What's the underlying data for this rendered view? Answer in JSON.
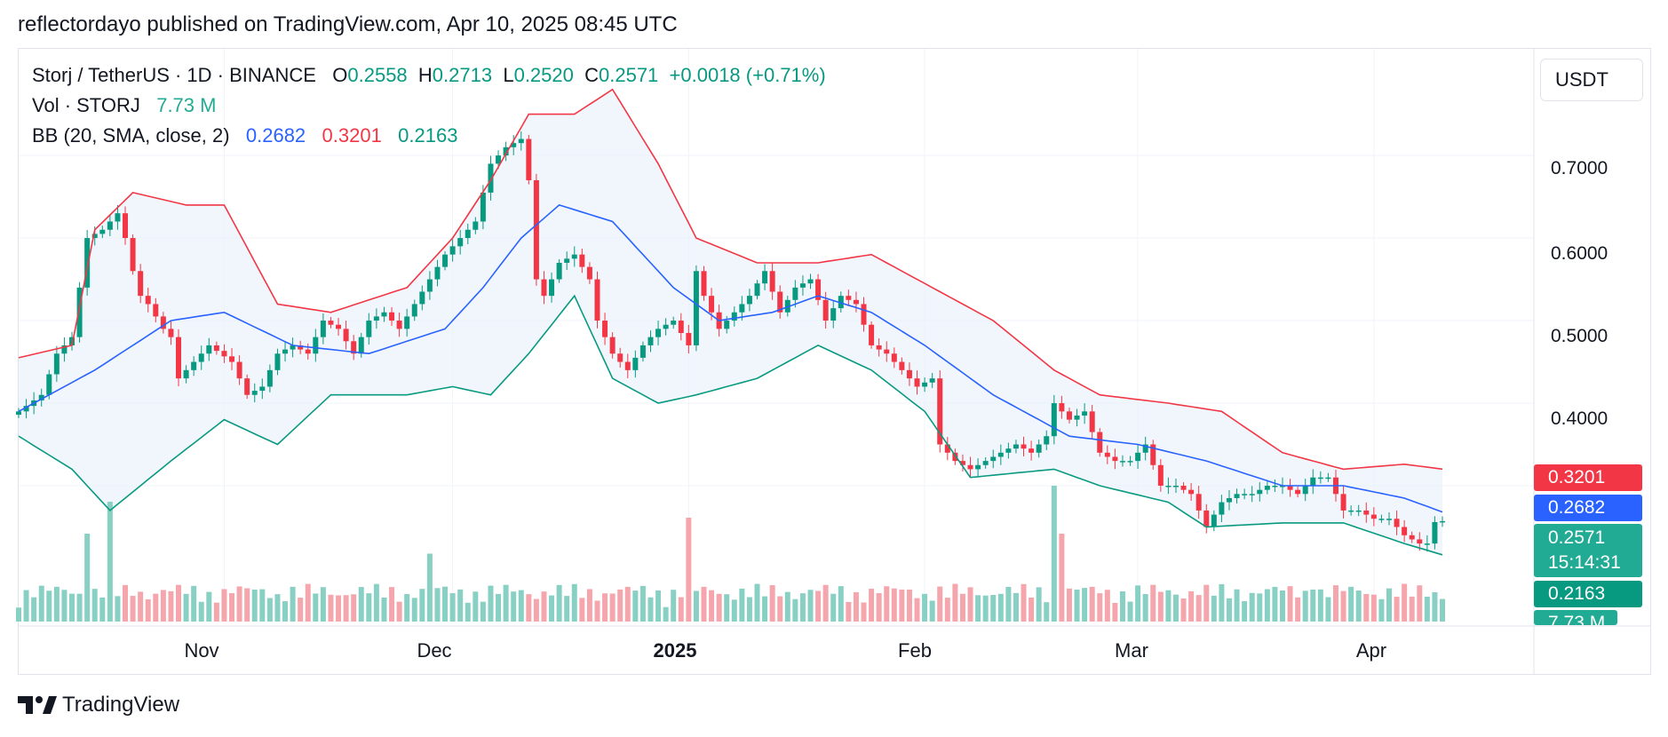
{
  "header": {
    "published": "reflectordayo published on TradingView.com, Apr 10, 2025 08:45 UTC"
  },
  "legend": {
    "symbol": "Storj / TetherUS · 1D · BINANCE",
    "o_label": "O",
    "o_value": "0.2558",
    "h_label": "H",
    "h_value": "0.2713",
    "l_label": "L",
    "l_value": "0.2520",
    "c_label": "C",
    "c_value": "0.2571",
    "change": "+0.0018 (+0.71%)",
    "vol_label": "Vol · STORJ",
    "vol_value": "7.73 M",
    "bb_label": "BB (20, SMA, close, 2)",
    "bb_basis": "0.2682",
    "bb_upper": "0.3201",
    "bb_lower": "0.2163"
  },
  "currency": "USDT",
  "price_axis": {
    "ticks": [
      "0.7000",
      "0.6000",
      "0.5000",
      "0.4000"
    ],
    "last_price": "0.2571",
    "countdown": "15:14:31",
    "bb_upper": "0.3201",
    "bb_basis": "0.2682",
    "bb_lower": "0.2163",
    "volume": "7.73 M"
  },
  "time_axis": {
    "ticks": [
      "Nov",
      "Dec",
      "2025",
      "Feb",
      "Mar",
      "Apr"
    ]
  },
  "branding": {
    "name": "TradingView"
  },
  "colors": {
    "up": "#089981",
    "down": "#f23645",
    "basis": "#2962ff",
    "upper": "#f23645",
    "lower": "#089981",
    "band_fill": "#e9f2fb"
  },
  "chart_data": {
    "type": "candlestick",
    "symbol": "STORJ/USDT",
    "timeframe": "1D",
    "ylim": [
      0.2,
      0.77
    ],
    "yticks": [
      0.4,
      0.5,
      0.6,
      0.7
    ],
    "x_range": [
      "2024-10-05",
      "2025-04-10"
    ],
    "x_ticks": [
      "2024-11-01",
      "2024-12-01",
      "2025-01-01",
      "2025-02-01",
      "2025-03-01",
      "2025-04-01"
    ],
    "close_keypoints": [
      [
        "2024-10-05",
        0.39
      ],
      [
        "2024-10-08",
        0.41
      ],
      [
        "2024-10-10",
        0.46
      ],
      [
        "2024-10-12",
        0.48
      ],
      [
        "2024-10-14",
        0.6
      ],
      [
        "2024-10-16",
        0.61
      ],
      [
        "2024-10-18",
        0.63
      ],
      [
        "2024-10-19",
        0.6
      ],
      [
        "2024-10-20",
        0.56
      ],
      [
        "2024-10-21",
        0.53
      ],
      [
        "2024-10-22",
        0.52
      ],
      [
        "2024-10-24",
        0.49
      ],
      [
        "2024-10-25",
        0.48
      ],
      [
        "2024-10-26",
        0.43
      ],
      [
        "2024-10-28",
        0.45
      ],
      [
        "2024-10-30",
        0.47
      ],
      [
        "2024-11-02",
        0.45
      ],
      [
        "2024-11-04",
        0.41
      ],
      [
        "2024-11-06",
        0.42
      ],
      [
        "2024-11-08",
        0.46
      ],
      [
        "2024-11-10",
        0.47
      ],
      [
        "2024-11-12",
        0.46
      ],
      [
        "2024-11-14",
        0.5
      ],
      [
        "2024-11-16",
        0.49
      ],
      [
        "2024-11-18",
        0.46
      ],
      [
        "2024-11-20",
        0.5
      ],
      [
        "2024-11-22",
        0.51
      ],
      [
        "2024-11-24",
        0.49
      ],
      [
        "2024-11-26",
        0.52
      ],
      [
        "2024-11-28",
        0.55
      ],
      [
        "2024-11-30",
        0.58
      ],
      [
        "2024-12-02",
        0.6
      ],
      [
        "2024-12-04",
        0.62
      ],
      [
        "2024-12-06",
        0.69
      ],
      [
        "2024-12-08",
        0.71
      ],
      [
        "2024-12-10",
        0.72
      ],
      [
        "2024-12-11",
        0.67
      ],
      [
        "2024-12-12",
        0.55
      ],
      [
        "2024-12-13",
        0.53
      ],
      [
        "2024-12-15",
        0.57
      ],
      [
        "2024-12-17",
        0.58
      ],
      [
        "2024-12-19",
        0.55
      ],
      [
        "2024-12-20",
        0.5
      ],
      [
        "2024-12-22",
        0.46
      ],
      [
        "2024-12-24",
        0.44
      ],
      [
        "2024-12-26",
        0.47
      ],
      [
        "2024-12-28",
        0.49
      ],
      [
        "2024-12-30",
        0.5
      ],
      [
        "2025-01-01",
        0.47
      ],
      [
        "2025-01-02",
        0.56
      ],
      [
        "2025-01-03",
        0.53
      ],
      [
        "2025-01-05",
        0.49
      ],
      [
        "2025-01-07",
        0.51
      ],
      [
        "2025-01-09",
        0.53
      ],
      [
        "2025-01-11",
        0.56
      ],
      [
        "2025-01-13",
        0.51
      ],
      [
        "2025-01-15",
        0.54
      ],
      [
        "2025-01-17",
        0.55
      ],
      [
        "2025-01-19",
        0.5
      ],
      [
        "2025-01-21",
        0.53
      ],
      [
        "2025-01-23",
        0.52
      ],
      [
        "2025-01-25",
        0.47
      ],
      [
        "2025-01-27",
        0.46
      ],
      [
        "2025-01-29",
        0.44
      ],
      [
        "2025-01-31",
        0.42
      ],
      [
        "2025-02-02",
        0.43
      ],
      [
        "2025-02-03",
        0.35
      ],
      [
        "2025-02-05",
        0.33
      ],
      [
        "2025-02-07",
        0.32
      ],
      [
        "2025-02-09",
        0.33
      ],
      [
        "2025-02-11",
        0.34
      ],
      [
        "2025-02-13",
        0.35
      ],
      [
        "2025-02-15",
        0.34
      ],
      [
        "2025-02-17",
        0.36
      ],
      [
        "2025-02-18",
        0.4
      ],
      [
        "2025-02-20",
        0.38
      ],
      [
        "2025-02-22",
        0.39
      ],
      [
        "2025-02-24",
        0.34
      ],
      [
        "2025-02-26",
        0.33
      ],
      [
        "2025-02-28",
        0.33
      ],
      [
        "2025-03-02",
        0.35
      ],
      [
        "2025-03-04",
        0.3
      ],
      [
        "2025-03-06",
        0.3
      ],
      [
        "2025-03-08",
        0.29
      ],
      [
        "2025-03-10",
        0.25
      ],
      [
        "2025-03-12",
        0.28
      ],
      [
        "2025-03-14",
        0.29
      ],
      [
        "2025-03-16",
        0.29
      ],
      [
        "2025-03-18",
        0.3
      ],
      [
        "2025-03-20",
        0.3
      ],
      [
        "2025-03-22",
        0.29
      ],
      [
        "2025-03-24",
        0.31
      ],
      [
        "2025-03-26",
        0.31
      ],
      [
        "2025-03-28",
        0.27
      ],
      [
        "2025-03-30",
        0.27
      ],
      [
        "2025-04-01",
        0.26
      ],
      [
        "2025-04-03",
        0.26
      ],
      [
        "2025-04-05",
        0.24
      ],
      [
        "2025-04-07",
        0.23
      ],
      [
        "2025-04-08",
        0.23
      ],
      [
        "2025-04-09",
        0.256
      ],
      [
        "2025-04-10",
        0.2571
      ]
    ],
    "bb_basis": [
      [
        "2024-10-05",
        0.39
      ],
      [
        "2024-10-15",
        0.44
      ],
      [
        "2024-10-25",
        0.5
      ],
      [
        "2024-11-01",
        0.51
      ],
      [
        "2024-11-10",
        0.47
      ],
      [
        "2024-11-20",
        0.46
      ],
      [
        "2024-11-30",
        0.49
      ],
      [
        "2024-12-05",
        0.54
      ],
      [
        "2024-12-10",
        0.6
      ],
      [
        "2024-12-15",
        0.64
      ],
      [
        "2024-12-22",
        0.62
      ],
      [
        "2024-12-30",
        0.54
      ],
      [
        "2025-01-05",
        0.5
      ],
      [
        "2025-01-12",
        0.51
      ],
      [
        "2025-01-18",
        0.53
      ],
      [
        "2025-01-25",
        0.51
      ],
      [
        "2025-02-01",
        0.47
      ],
      [
        "2025-02-10",
        0.41
      ],
      [
        "2025-02-20",
        0.36
      ],
      [
        "2025-03-01",
        0.35
      ],
      [
        "2025-03-10",
        0.33
      ],
      [
        "2025-03-20",
        0.3
      ],
      [
        "2025-03-28",
        0.3
      ],
      [
        "2025-04-05",
        0.285
      ],
      [
        "2025-04-10",
        0.2682
      ]
    ],
    "bb_upper": [
      [
        "2024-10-05",
        0.455
      ],
      [
        "2024-10-12",
        0.47
      ],
      [
        "2024-10-15",
        0.61
      ],
      [
        "2024-10-20",
        0.655
      ],
      [
        "2024-10-27",
        0.64
      ],
      [
        "2024-11-01",
        0.64
      ],
      [
        "2024-11-08",
        0.52
      ],
      [
        "2024-11-15",
        0.51
      ],
      [
        "2024-11-25",
        0.54
      ],
      [
        "2024-12-01",
        0.6
      ],
      [
        "2024-12-06",
        0.67
      ],
      [
        "2024-12-11",
        0.75
      ],
      [
        "2024-12-17",
        0.75
      ],
      [
        "2024-12-22",
        0.78
      ],
      [
        "2024-12-28",
        0.69
      ],
      [
        "2025-01-02",
        0.6
      ],
      [
        "2025-01-10",
        0.57
      ],
      [
        "2025-01-18",
        0.57
      ],
      [
        "2025-01-25",
        0.58
      ],
      [
        "2025-02-01",
        0.545
      ],
      [
        "2025-02-10",
        0.5
      ],
      [
        "2025-02-18",
        0.44
      ],
      [
        "2025-02-24",
        0.41
      ],
      [
        "2025-03-05",
        0.4
      ],
      [
        "2025-03-12",
        0.39
      ],
      [
        "2025-03-20",
        0.34
      ],
      [
        "2025-03-28",
        0.32
      ],
      [
        "2025-04-05",
        0.326
      ],
      [
        "2025-04-10",
        0.3201
      ]
    ],
    "bb_lower": [
      [
        "2024-10-05",
        0.36
      ],
      [
        "2024-10-12",
        0.32
      ],
      [
        "2024-10-17",
        0.27
      ],
      [
        "2024-10-25",
        0.33
      ],
      [
        "2024-11-01",
        0.38
      ],
      [
        "2024-11-08",
        0.35
      ],
      [
        "2024-11-15",
        0.41
      ],
      [
        "2024-11-25",
        0.41
      ],
      [
        "2024-12-01",
        0.42
      ],
      [
        "2024-12-06",
        0.41
      ],
      [
        "2024-12-11",
        0.46
      ],
      [
        "2024-12-17",
        0.53
      ],
      [
        "2024-12-22",
        0.43
      ],
      [
        "2024-12-28",
        0.4
      ],
      [
        "2025-01-02",
        0.41
      ],
      [
        "2025-01-10",
        0.43
      ],
      [
        "2025-01-18",
        0.47
      ],
      [
        "2025-01-25",
        0.44
      ],
      [
        "2025-02-01",
        0.39
      ],
      [
        "2025-02-07",
        0.31
      ],
      [
        "2025-02-18",
        0.32
      ],
      [
        "2025-02-24",
        0.3
      ],
      [
        "2025-03-05",
        0.28
      ],
      [
        "2025-03-10",
        0.25
      ],
      [
        "2025-03-20",
        0.255
      ],
      [
        "2025-03-28",
        0.255
      ],
      [
        "2025-04-05",
        0.23
      ],
      [
        "2025-04-10",
        0.2163
      ]
    ],
    "volume_spikes": [
      [
        "2024-10-14",
        2.2
      ],
      [
        "2024-10-17",
        3.0
      ],
      [
        "2024-11-28",
        1.7
      ],
      [
        "2025-01-01",
        2.6
      ],
      [
        "2025-02-18",
        3.4
      ],
      [
        "2025-02-19",
        2.2
      ],
      [
        "2025-03-24",
        0.8
      ]
    ]
  }
}
